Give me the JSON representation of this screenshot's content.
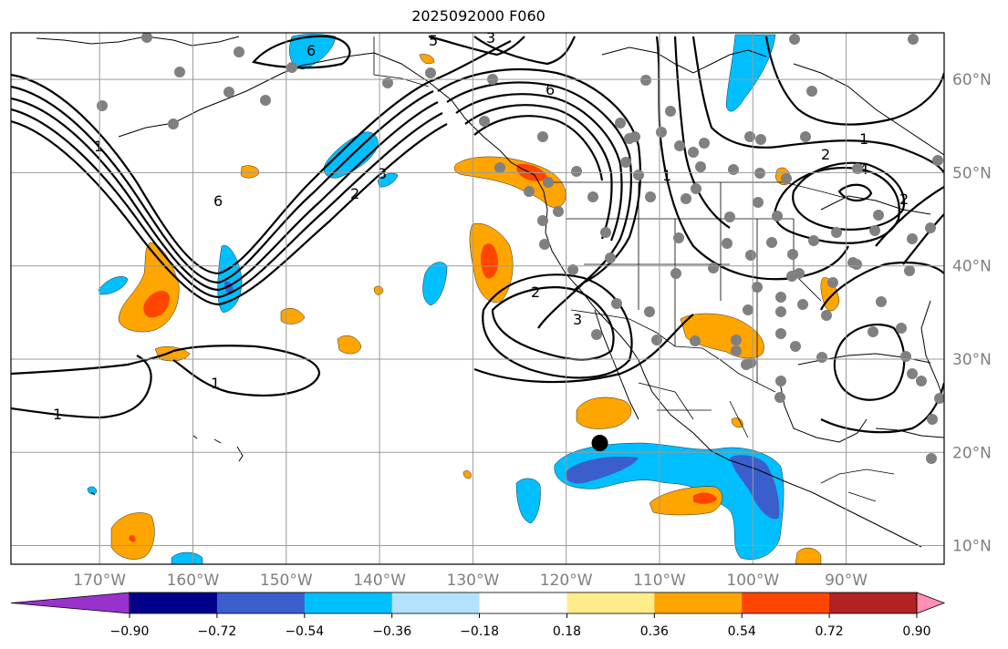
{
  "title": "2025092000 F060",
  "map": {
    "lat_labels": [
      "60°N",
      "50°N",
      "40°N",
      "30°N",
      "20°N",
      "10°N"
    ],
    "lat_values": [
      60,
      50,
      40,
      30,
      20,
      10
    ],
    "lon_labels": [
      "170°W",
      "160°W",
      "150°W",
      "140°W",
      "130°W",
      "120°W",
      "110°W",
      "100°W",
      "90°W"
    ],
    "lon_values": [
      -170,
      -160,
      -150,
      -140,
      -130,
      -120,
      -110,
      -100,
      -90
    ],
    "extent": {
      "lon_min": -179.5,
      "lon_max": -79.5,
      "lat_min": 8,
      "lat_max": 65
    },
    "contour_labels": [
      "6",
      "5",
      "3",
      "6",
      "3",
      "2",
      "1",
      "6",
      "2",
      "1",
      "1",
      "3",
      "1",
      "1",
      "2",
      "4",
      "2"
    ],
    "marker": {
      "name": "storm-center",
      "lon": -116.4,
      "lat": 21
    }
  },
  "colorbar": {
    "ticks": [
      "−0.90",
      "−0.72",
      "−0.54",
      "−0.36",
      "−0.18",
      "0.18",
      "0.36",
      "0.54",
      "0.72",
      "0.90"
    ],
    "colors": [
      "#9932cc",
      "#00008b",
      "#3a5fcd",
      "#00bfff",
      "#b2e2ff",
      "#ffffff",
      "#ffec8b",
      "#ffa500",
      "#ff4500",
      "#b22222",
      "#ff8fb3"
    ],
    "min_color": "#9932cc",
    "max_color": "#ff8fb3"
  }
}
